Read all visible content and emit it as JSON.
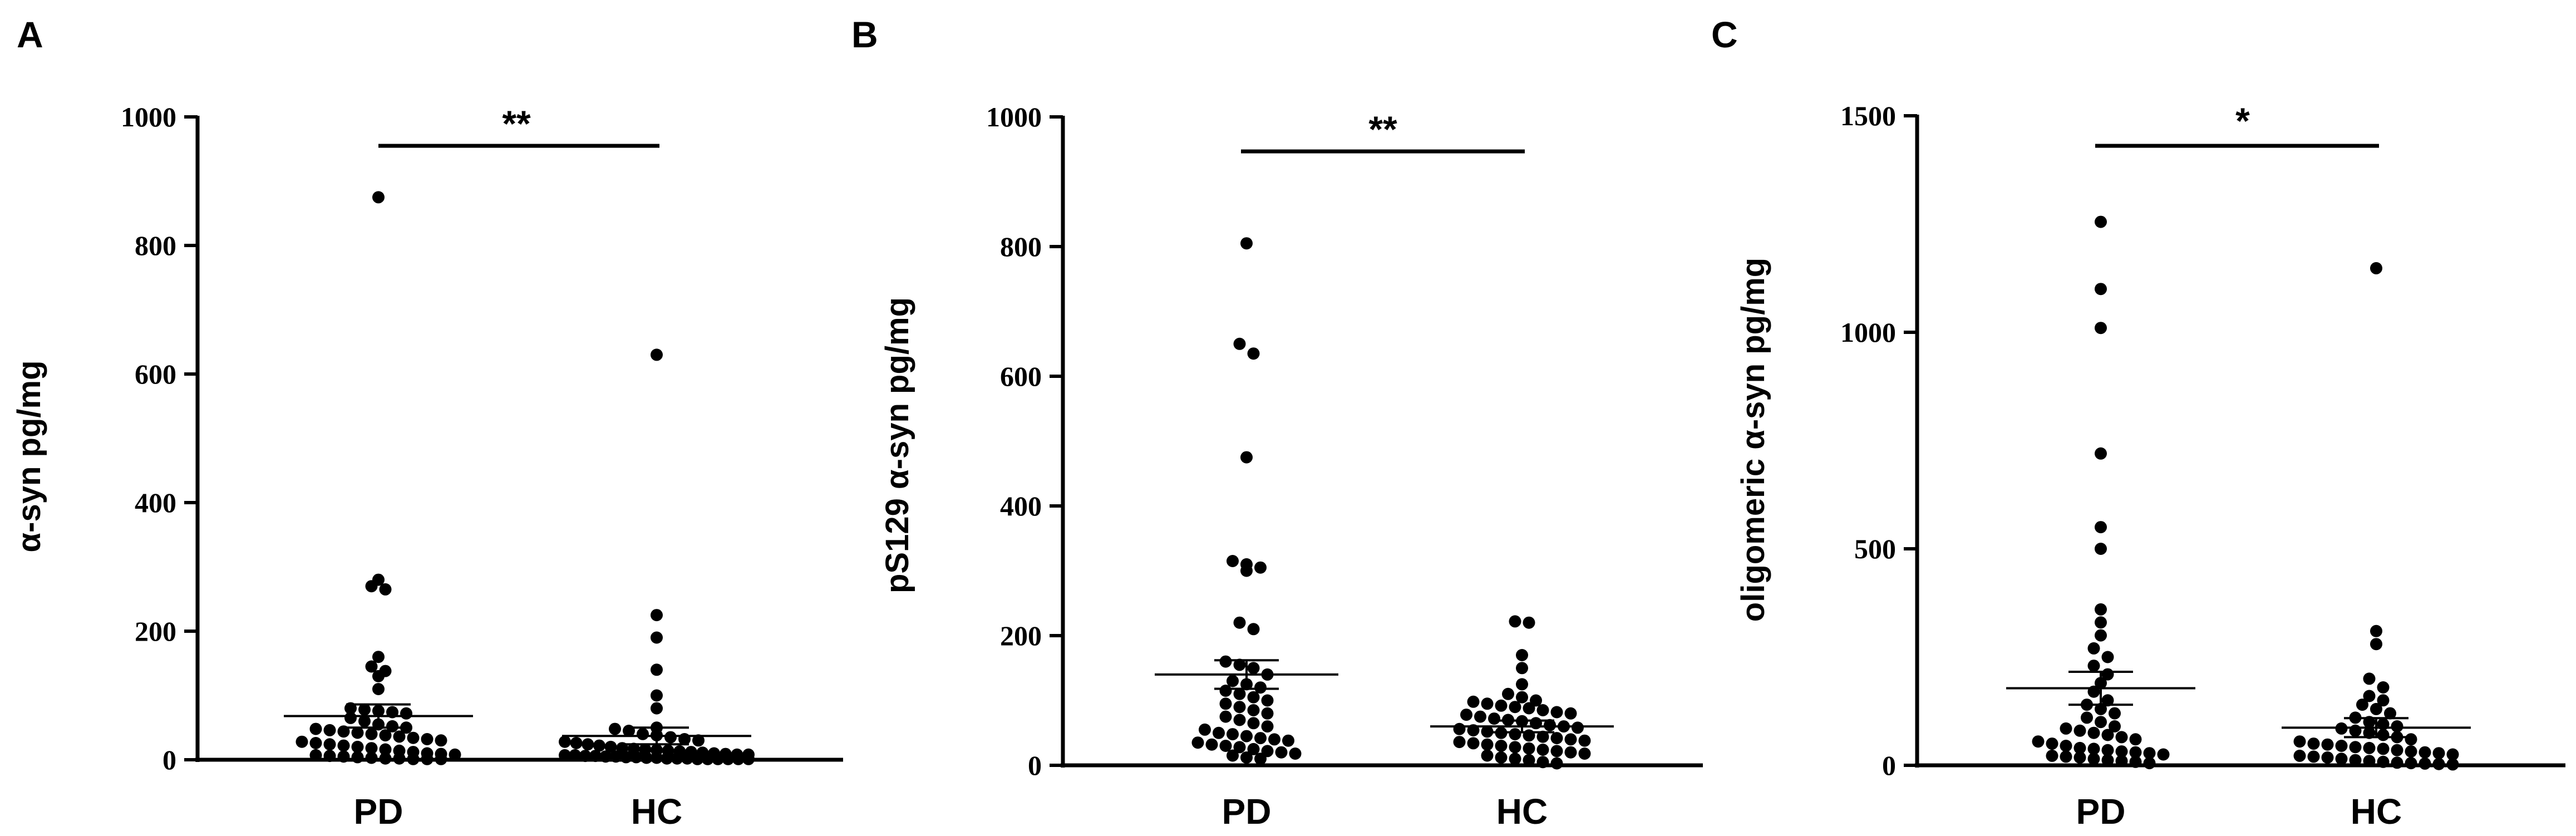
{
  "chart_data": [
    {
      "type": "scatter",
      "panel": "A",
      "ylabel": "α-syn pg/mg",
      "ylim": [
        0,
        1000
      ],
      "yticks": [
        0,
        200,
        400,
        600,
        800,
        1000
      ],
      "categories": [
        "PD",
        "HC"
      ],
      "significance": "**",
      "series": [
        {
          "name": "PD",
          "mean": 68,
          "sem": 18,
          "values": [
            875,
            280,
            270,
            265,
            160,
            145,
            138,
            130,
            110,
            80,
            78,
            76,
            74,
            72,
            65,
            60,
            55,
            52,
            50,
            48,
            46,
            44,
            42,
            40,
            38,
            36,
            34,
            32,
            30,
            28,
            26,
            24,
            22,
            20,
            18,
            16,
            14,
            12,
            10,
            9,
            8,
            7,
            6,
            5,
            4,
            3,
            2,
            2,
            1,
            1,
            1
          ]
        },
        {
          "name": "HC",
          "mean": 37,
          "sem": 13,
          "values": [
            630,
            225,
            190,
            140,
            100,
            80,
            50,
            48,
            45,
            40,
            38,
            35,
            32,
            30,
            28,
            26,
            24,
            22,
            20,
            18,
            17,
            16,
            15,
            14,
            13,
            12,
            11,
            10,
            9,
            8,
            8,
            7,
            7,
            6,
            6,
            5,
            5,
            4,
            4,
            3,
            3,
            2,
            2,
            2,
            1,
            1,
            1,
            1,
            1,
            1
          ]
        }
      ]
    },
    {
      "type": "scatter",
      "panel": "B",
      "ylabel": "pS129 α-syn pg/mg",
      "ylim": [
        0,
        1000
      ],
      "yticks": [
        0,
        200,
        400,
        600,
        800,
        1000
      ],
      "categories": [
        "PD",
        "HC"
      ],
      "significance": "**",
      "series": [
        {
          "name": "PD",
          "mean": 140,
          "sem": 22,
          "values": [
            805,
            650,
            635,
            475,
            315,
            310,
            305,
            300,
            220,
            210,
            160,
            155,
            150,
            140,
            130,
            125,
            120,
            115,
            110,
            105,
            100,
            95,
            90,
            85,
            80,
            75,
            70,
            65,
            60,
            55,
            50,
            48,
            45,
            42,
            40,
            38,
            35,
            32,
            30,
            28,
            25,
            22,
            20,
            18,
            15,
            12,
            10
          ]
        },
        {
          "name": "HC",
          "mean": 60,
          "sem": 9,
          "values": [
            222,
            220,
            170,
            150,
            125,
            110,
            105,
            100,
            98,
            95,
            92,
            90,
            88,
            85,
            82,
            80,
            78,
            75,
            72,
            70,
            68,
            65,
            62,
            60,
            58,
            56,
            54,
            52,
            50,
            48,
            46,
            44,
            42,
            40,
            38,
            36,
            34,
            32,
            30,
            28,
            26,
            24,
            22,
            20,
            18,
            15,
            12,
            10,
            8,
            5,
            3
          ]
        }
      ]
    },
    {
      "type": "scatter",
      "panel": "C",
      "ylabel": "oligomeric α-syn pg/mg",
      "ylim": [
        0,
        1500
      ],
      "yticks": [
        0,
        500,
        1000,
        1500
      ],
      "categories": [
        "PD",
        "HC"
      ],
      "significance": "*",
      "series": [
        {
          "name": "PD",
          "mean": 178,
          "sem": 38,
          "values": [
            1255,
            1100,
            1010,
            720,
            550,
            500,
            360,
            330,
            300,
            270,
            250,
            230,
            210,
            190,
            170,
            150,
            140,
            130,
            120,
            110,
            100,
            90,
            85,
            80,
            75,
            70,
            65,
            60,
            55,
            50,
            45,
            40,
            38,
            35,
            32,
            30,
            28,
            25,
            22,
            20,
            18,
            15,
            12,
            10,
            8,
            5
          ]
        },
        {
          "name": "HC",
          "mean": 87,
          "sem": 22,
          "values": [
            1148,
            310,
            280,
            200,
            180,
            160,
            150,
            140,
            130,
            120,
            110,
            100,
            95,
            90,
            85,
            80,
            75,
            70,
            65,
            60,
            55,
            50,
            48,
            45,
            42,
            40,
            38,
            35,
            32,
            30,
            28,
            25,
            22,
            20,
            18,
            15,
            12,
            10,
            8,
            6,
            5,
            4,
            3,
            2
          ]
        }
      ]
    }
  ]
}
